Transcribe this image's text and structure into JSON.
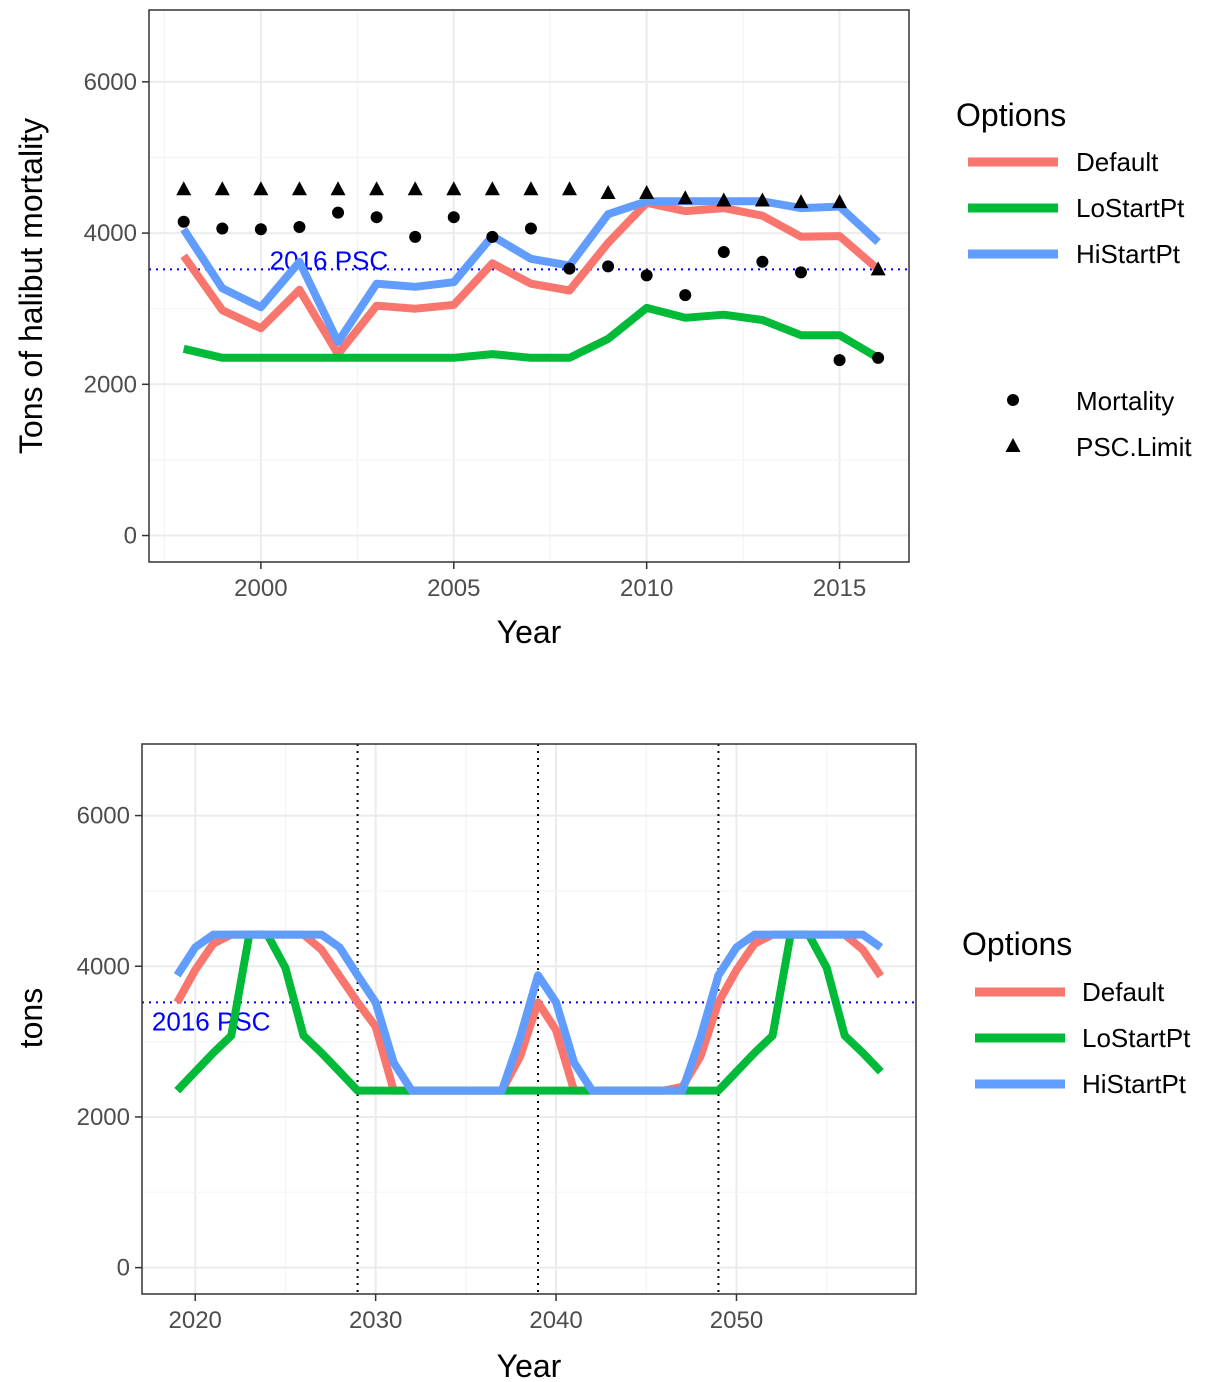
{
  "colors": {
    "Default": "#f8766d",
    "LoStartPt": "#00ba38",
    "HiStartPt": "#619cff",
    "psc_line": "#0000ff",
    "points": "#000000"
  },
  "chart_data": [
    {
      "type": "line",
      "xlabel": "Year",
      "ylabel": "Tons of halibut mortality",
      "xlim": [
        1997.1,
        2016.8
      ],
      "ylim": [
        -350,
        6950
      ],
      "x_ticks": [
        2000,
        2005,
        2010,
        2015
      ],
      "y_ticks": [
        0,
        2000,
        4000,
        6000
      ],
      "grid": true,
      "legend_position": "right",
      "legend": {
        "title": "Options",
        "line_items": [
          "Default",
          "LoStartPt",
          "HiStartPt"
        ],
        "point_items": [
          "Mortality",
          "PSC.Limit"
        ]
      },
      "hline": {
        "y": 3520,
        "label": "2016 PSC",
        "style": "dotted"
      },
      "x": [
        1998,
        1999,
        2000,
        2001,
        2002,
        2003,
        2004,
        2005,
        2006,
        2007,
        2008,
        2009,
        2010,
        2011,
        2012,
        2013,
        2014,
        2015,
        2016
      ],
      "series": [
        {
          "name": "Default",
          "values": [
            3700,
            2980,
            2740,
            3250,
            2400,
            3040,
            3000,
            3050,
            3600,
            3330,
            3240,
            3870,
            4400,
            4290,
            4330,
            4230,
            3950,
            3960,
            3520
          ]
        },
        {
          "name": "LoStartPt",
          "values": [
            2470,
            2350,
            2350,
            2350,
            2350,
            2350,
            2350,
            2350,
            2400,
            2350,
            2350,
            2600,
            3010,
            2880,
            2920,
            2850,
            2650,
            2650,
            2350
          ]
        },
        {
          "name": "HiStartPt",
          "values": [
            4050,
            3270,
            3020,
            3620,
            2560,
            3330,
            3290,
            3350,
            3960,
            3660,
            3570,
            4250,
            4420,
            4420,
            4420,
            4420,
            4330,
            4350,
            3880
          ]
        }
      ],
      "points": [
        {
          "name": "Mortality",
          "shape": "circle",
          "values": [
            4150,
            4060,
            4050,
            4080,
            4270,
            4210,
            3950,
            4210,
            3950,
            4060,
            3530,
            3560,
            3440,
            3180,
            3750,
            3620,
            3480,
            2320,
            2350
          ]
        },
        {
          "name": "PSC.Limit",
          "shape": "triangle",
          "values": [
            4580,
            4580,
            4580,
            4580,
            4580,
            4580,
            4580,
            4580,
            4580,
            4580,
            4580,
            4530,
            4530,
            4460,
            4430,
            4430,
            4410,
            4410,
            3520
          ]
        }
      ]
    },
    {
      "type": "line",
      "xlabel": "Year",
      "ylabel": "tons",
      "xlim": [
        2017.05,
        2059.95
      ],
      "ylim": [
        -350,
        6950
      ],
      "x_ticks": [
        2020,
        2030,
        2040,
        2050
      ],
      "y_ticks": [
        0,
        2000,
        4000,
        6000
      ],
      "grid": true,
      "legend_position": "right",
      "legend": {
        "title": "Options",
        "line_items": [
          "Default",
          "LoStartPt",
          "HiStartPt"
        ]
      },
      "hline": {
        "y": 3520,
        "label": "2016 PSC",
        "style": "dotted"
      },
      "vlines": [
        2029,
        2039,
        2049
      ],
      "x": [
        2019,
        2020,
        2021,
        2022,
        2023,
        2024,
        2025,
        2026,
        2027,
        2028,
        2029,
        2030,
        2031,
        2032,
        2033,
        2034,
        2035,
        2036,
        2037,
        2038,
        2039,
        2040,
        2041,
        2042,
        2043,
        2044,
        2045,
        2046,
        2047,
        2048,
        2049,
        2050,
        2051,
        2052,
        2053,
        2054,
        2055,
        2056,
        2057,
        2058
      ],
      "series": [
        {
          "name": "Default",
          "values": [
            3520,
            3950,
            4300,
            4420,
            4420,
            4420,
            4420,
            4420,
            4220,
            3870,
            3520,
            3200,
            2350,
            2350,
            2350,
            2350,
            2350,
            2350,
            2350,
            2800,
            3520,
            3150,
            2350,
            2350,
            2350,
            2350,
            2350,
            2350,
            2400,
            2800,
            3520,
            3950,
            4300,
            4420,
            4420,
            4420,
            4420,
            4420,
            4220,
            3870
          ]
        },
        {
          "name": "LoStartPt",
          "values": [
            2350,
            2600,
            2850,
            3080,
            4420,
            4420,
            3980,
            3080,
            2850,
            2600,
            2350,
            2350,
            2350,
            2350,
            2350,
            2350,
            2350,
            2350,
            2350,
            2350,
            2350,
            2350,
            2350,
            2350,
            2350,
            2350,
            2350,
            2350,
            2350,
            2350,
            2350,
            2600,
            2850,
            3080,
            4420,
            4420,
            3980,
            3080,
            2850,
            2600
          ]
        },
        {
          "name": "HiStartPt",
          "values": [
            3880,
            4250,
            4420,
            4420,
            4420,
            4420,
            4420,
            4420,
            4420,
            4250,
            3880,
            3520,
            2720,
            2350,
            2350,
            2350,
            2350,
            2350,
            2350,
            3050,
            3880,
            3520,
            2720,
            2350,
            2350,
            2350,
            2350,
            2350,
            2350,
            3050,
            3880,
            4250,
            4420,
            4420,
            4420,
            4420,
            4420,
            4420,
            4420,
            4250
          ]
        }
      ]
    }
  ]
}
